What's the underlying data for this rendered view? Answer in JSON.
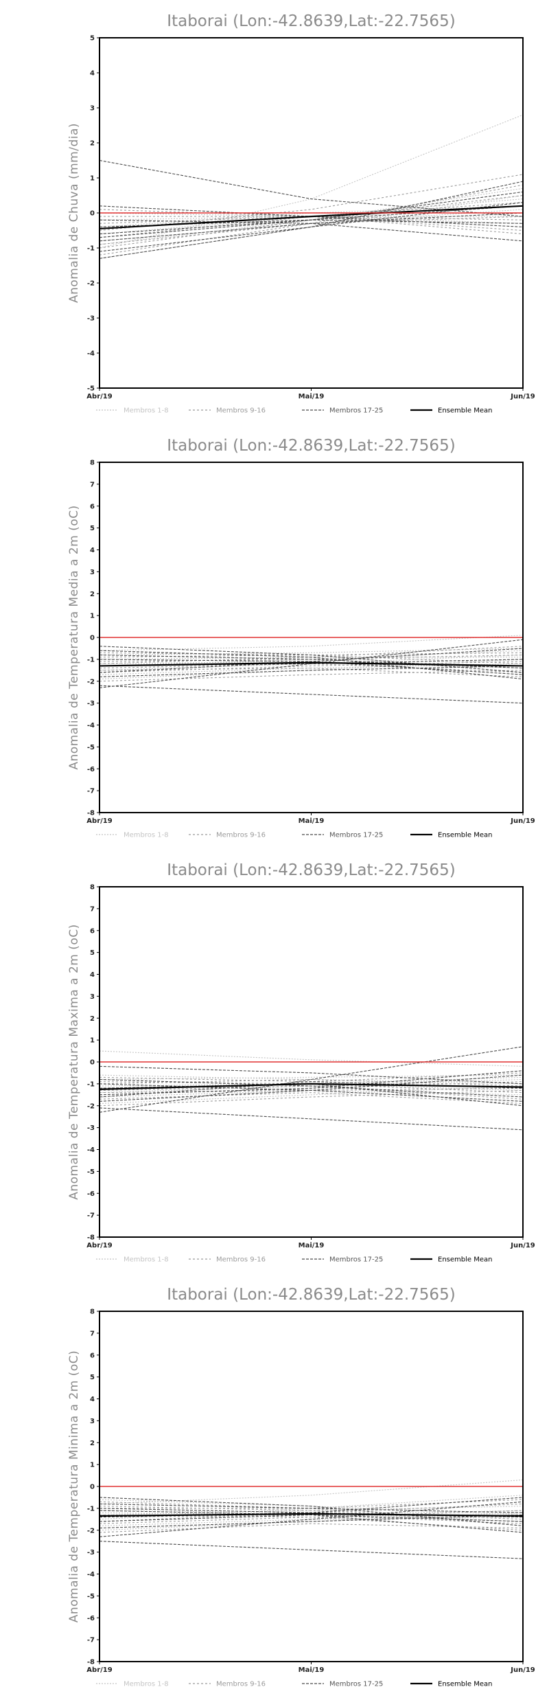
{
  "chart_data": [
    {
      "type": "line",
      "title": "Itaborai (Lon:-42.8639,Lat:-22.7565)",
      "ylabel": "Anomalia de Chuva (mm/dia)",
      "x": [
        "Abr/19",
        "Mai/19",
        "Jun/19"
      ],
      "ylim": [
        -5,
        5
      ],
      "yticks": [
        -5,
        -4,
        -3,
        -2,
        -1,
        0,
        1,
        2,
        3,
        4,
        5
      ],
      "reference_line": {
        "value": 0,
        "color": "#e03030"
      },
      "legend": [
        "Membros 1-8",
        "Membros 9-16",
        "Membros 17-25",
        "Ensemble Mean"
      ],
      "series": [
        {
          "group": 1,
          "values": [
            -1.3,
            -0.4,
            0.5
          ]
        },
        {
          "group": 1,
          "values": [
            -1.0,
            0.4,
            2.8
          ]
        },
        {
          "group": 1,
          "values": [
            -0.9,
            -0.2,
            0.7
          ]
        },
        {
          "group": 1,
          "values": [
            -0.6,
            -0.1,
            0.4
          ]
        },
        {
          "group": 1,
          "values": [
            -0.4,
            0.0,
            0.2
          ]
        },
        {
          "group": 1,
          "values": [
            -0.2,
            -0.1,
            -0.1
          ]
        },
        {
          "group": 1,
          "values": [
            0.0,
            -0.1,
            -0.3
          ]
        },
        {
          "group": 1,
          "values": [
            -0.8,
            -0.3,
            0.1
          ]
        },
        {
          "group": 2,
          "values": [
            -1.2,
            -0.3,
            0.8
          ]
        },
        {
          "group": 2,
          "values": [
            -1.0,
            -0.2,
            0.5
          ]
        },
        {
          "group": 2,
          "values": [
            -0.7,
            -0.1,
            0.3
          ]
        },
        {
          "group": 2,
          "values": [
            -0.5,
            0.1,
            1.1
          ]
        },
        {
          "group": 2,
          "values": [
            -0.3,
            -0.1,
            -0.2
          ]
        },
        {
          "group": 2,
          "values": [
            -0.1,
            -0.1,
            -0.5
          ]
        },
        {
          "group": 2,
          "values": [
            0.1,
            -0.1,
            -0.6
          ]
        },
        {
          "group": 2,
          "values": [
            -0.9,
            -0.3,
            -0.1
          ]
        },
        {
          "group": 3,
          "values": [
            1.5,
            0.4,
            -0.1
          ]
        },
        {
          "group": 3,
          "values": [
            -1.3,
            -0.4,
            0.9
          ]
        },
        {
          "group": 3,
          "values": [
            -1.1,
            -0.4,
            0.3
          ]
        },
        {
          "group": 3,
          "values": [
            -0.8,
            -0.3,
            0.0
          ]
        },
        {
          "group": 3,
          "values": [
            -0.6,
            -0.2,
            0.6
          ]
        },
        {
          "group": 3,
          "values": [
            -0.4,
            -0.2,
            -0.3
          ]
        },
        {
          "group": 3,
          "values": [
            -0.2,
            -0.3,
            -0.8
          ]
        },
        {
          "group": 3,
          "values": [
            0.2,
            -0.1,
            -0.4
          ]
        },
        {
          "group": 3,
          "values": [
            -0.7,
            -0.2,
            0.2
          ]
        },
        {
          "group": 4,
          "values": [
            -0.45,
            -0.1,
            0.2
          ]
        }
      ]
    },
    {
      "type": "line",
      "title": "Itaborai (Lon:-42.8639,Lat:-22.7565)",
      "ylabel": "Anomalia de Temperatura Media a 2m (oC)",
      "x": [
        "Abr/19",
        "Mai/19",
        "Jun/19"
      ],
      "ylim": [
        -8,
        8
      ],
      "yticks": [
        -8,
        -7,
        -6,
        -5,
        -4,
        -3,
        -2,
        -1,
        0,
        1,
        2,
        3,
        4,
        5,
        6,
        7,
        8
      ],
      "reference_line": {
        "value": 0,
        "color": "#e03030"
      },
      "legend": [
        "Membros 1-8",
        "Membros 9-16",
        "Membros 17-25",
        "Ensemble Mean"
      ],
      "series": [
        {
          "group": 1,
          "values": [
            -1.5,
            -1.2,
            -0.8
          ]
        },
        {
          "group": 1,
          "values": [
            -0.6,
            -0.4,
            0.1
          ]
        },
        {
          "group": 1,
          "values": [
            -1.9,
            -1.5,
            -1.0
          ]
        },
        {
          "group": 1,
          "values": [
            -1.0,
            -0.9,
            -0.9
          ]
        },
        {
          "group": 1,
          "values": [
            -1.2,
            -1.1,
            -1.4
          ]
        },
        {
          "group": 1,
          "values": [
            -0.8,
            -0.7,
            -0.5
          ]
        },
        {
          "group": 1,
          "values": [
            -1.7,
            -1.4,
            -1.2
          ]
        },
        {
          "group": 1,
          "values": [
            -1.3,
            -1.0,
            -0.6
          ]
        },
        {
          "group": 2,
          "values": [
            -1.6,
            -1.3,
            -1.1
          ]
        },
        {
          "group": 2,
          "values": [
            -0.9,
            -0.8,
            -0.7
          ]
        },
        {
          "group": 2,
          "values": [
            -1.4,
            -1.2,
            -1.6
          ]
        },
        {
          "group": 2,
          "values": [
            -2.0,
            -1.7,
            -1.5
          ]
        },
        {
          "group": 2,
          "values": [
            -1.1,
            -1.0,
            -0.8
          ]
        },
        {
          "group": 2,
          "values": [
            -0.7,
            -0.8,
            -1.2
          ]
        },
        {
          "group": 2,
          "values": [
            -1.5,
            -1.4,
            -1.8
          ]
        },
        {
          "group": 2,
          "values": [
            -1.2,
            -0.9,
            -0.4
          ]
        },
        {
          "group": 3,
          "values": [
            -2.3,
            -1.2,
            -0.1
          ]
        },
        {
          "group": 3,
          "values": [
            -0.4,
            -0.8,
            -1.6
          ]
        },
        {
          "group": 3,
          "values": [
            -2.2,
            -2.6,
            -3.0
          ]
        },
        {
          "group": 3,
          "values": [
            -1.0,
            -1.1,
            -1.7
          ]
        },
        {
          "group": 3,
          "values": [
            -1.8,
            -1.5,
            -1.3
          ]
        },
        {
          "group": 3,
          "values": [
            -0.6,
            -0.9,
            -1.9
          ]
        },
        {
          "group": 3,
          "values": [
            -1.3,
            -1.2,
            -1.0
          ]
        },
        {
          "group": 3,
          "values": [
            -1.6,
            -1.1,
            -0.5
          ]
        },
        {
          "group": 3,
          "values": [
            -0.8,
            -1.0,
            -1.4
          ]
        },
        {
          "group": 4,
          "values": [
            -1.3,
            -1.15,
            -1.3
          ]
        }
      ]
    },
    {
      "type": "line",
      "title": "Itaborai (Lon:-42.8639,Lat:-22.7565)",
      "ylabel": "Anomalia de Temperatura Maxima a 2m (oC)",
      "x": [
        "Abr/19",
        "Mai/19",
        "Jun/19"
      ],
      "ylim": [
        -8,
        8
      ],
      "yticks": [
        -8,
        -7,
        -6,
        -5,
        -4,
        -3,
        -2,
        -1,
        0,
        1,
        2,
        3,
        4,
        5,
        6,
        7,
        8
      ],
      "reference_line": {
        "value": 0,
        "color": "#e03030"
      },
      "legend": [
        "Membros 1-8",
        "Membros 9-16",
        "Membros 17-25",
        "Ensemble Mean"
      ],
      "series": [
        {
          "group": 1,
          "values": [
            0.5,
            0.1,
            -0.2
          ]
        },
        {
          "group": 1,
          "values": [
            -1.4,
            -1.1,
            -0.8
          ]
        },
        {
          "group": 1,
          "values": [
            -0.8,
            -0.7,
            -0.6
          ]
        },
        {
          "group": 1,
          "values": [
            -1.9,
            -1.5,
            -1.1
          ]
        },
        {
          "group": 1,
          "values": [
            -1.1,
            -1.0,
            -1.3
          ]
        },
        {
          "group": 1,
          "values": [
            -0.6,
            -0.8,
            -1.0
          ]
        },
        {
          "group": 1,
          "values": [
            -1.6,
            -1.3,
            -1.5
          ]
        },
        {
          "group": 1,
          "values": [
            -1.2,
            -1.0,
            -0.7
          ]
        },
        {
          "group": 2,
          "values": [
            -1.5,
            -1.2,
            -0.9
          ]
        },
        {
          "group": 2,
          "values": [
            -0.9,
            -1.0,
            -1.4
          ]
        },
        {
          "group": 2,
          "values": [
            -2.0,
            -1.6,
            -1.3
          ]
        },
        {
          "group": 2,
          "values": [
            -1.3,
            -1.1,
            -1.7
          ]
        },
        {
          "group": 2,
          "values": [
            -0.7,
            -0.9,
            -0.5
          ]
        },
        {
          "group": 2,
          "values": [
            -1.7,
            -1.4,
            -1.9
          ]
        },
        {
          "group": 2,
          "values": [
            -1.0,
            -0.8,
            -1.1
          ]
        },
        {
          "group": 2,
          "values": [
            -1.4,
            -1.3,
            -1.2
          ]
        },
        {
          "group": 3,
          "values": [
            -2.3,
            -0.8,
            0.7
          ]
        },
        {
          "group": 3,
          "values": [
            -0.2,
            -0.5,
            -1.0
          ]
        },
        {
          "group": 3,
          "values": [
            -2.1,
            -2.6,
            -3.1
          ]
        },
        {
          "group": 3,
          "values": [
            -1.2,
            -1.0,
            -2.0
          ]
        },
        {
          "group": 3,
          "values": [
            -1.8,
            -1.3,
            -0.6
          ]
        },
        {
          "group": 3,
          "values": [
            -0.8,
            -1.1,
            -1.6
          ]
        },
        {
          "group": 3,
          "values": [
            -1.5,
            -1.2,
            -0.4
          ]
        },
        {
          "group": 3,
          "values": [
            -1.0,
            -1.3,
            -1.8
          ]
        },
        {
          "group": 3,
          "values": [
            -1.6,
            -0.9,
            -1.2
          ]
        },
        {
          "group": 4,
          "values": [
            -1.25,
            -1.0,
            -1.15
          ]
        }
      ]
    },
    {
      "type": "line",
      "title": "Itaborai (Lon:-42.8639,Lat:-22.7565)",
      "ylabel": "Anomalia de Temperatura Minima a 2m (oC)",
      "x": [
        "Abr/19",
        "Mai/19",
        "Jun/19"
      ],
      "ylim": [
        -8,
        8
      ],
      "yticks": [
        -8,
        -7,
        -6,
        -5,
        -4,
        -3,
        -2,
        -1,
        0,
        1,
        2,
        3,
        4,
        5,
        6,
        7,
        8
      ],
      "reference_line": {
        "value": 0,
        "color": "#e03030"
      },
      "legend": [
        "Membros 1-8",
        "Membros 9-16",
        "Membros 17-25",
        "Ensemble Mean"
      ],
      "series": [
        {
          "group": 1,
          "values": [
            -1.5,
            -1.0,
            -0.4
          ]
        },
        {
          "group": 1,
          "values": [
            -0.8,
            -0.4,
            0.3
          ]
        },
        {
          "group": 1,
          "values": [
            -2.0,
            -1.6,
            -1.2
          ]
        },
        {
          "group": 1,
          "values": [
            -1.1,
            -1.2,
            -1.6
          ]
        },
        {
          "group": 1,
          "values": [
            -1.3,
            -1.1,
            -0.9
          ]
        },
        {
          "group": 1,
          "values": [
            -0.6,
            -0.9,
            -1.3
          ]
        },
        {
          "group": 1,
          "values": [
            -1.8,
            -1.5,
            -1.4
          ]
        },
        {
          "group": 1,
          "values": [
            -1.2,
            -1.3,
            -1.1
          ]
        },
        {
          "group": 2,
          "values": [
            -1.6,
            -1.2,
            -0.8
          ]
        },
        {
          "group": 2,
          "values": [
            -0.9,
            -1.1,
            -1.5
          ]
        },
        {
          "group": 2,
          "values": [
            -1.4,
            -1.3,
            -1.7
          ]
        },
        {
          "group": 2,
          "values": [
            -2.1,
            -1.7,
            -1.9
          ]
        },
        {
          "group": 2,
          "values": [
            -1.0,
            -1.0,
            -0.6
          ]
        },
        {
          "group": 2,
          "values": [
            -0.7,
            -1.0,
            -1.8
          ]
        },
        {
          "group": 2,
          "values": [
            -1.7,
            -1.4,
            -1.1
          ]
        },
        {
          "group": 2,
          "values": [
            -1.3,
            -1.4,
            -2.0
          ]
        },
        {
          "group": 3,
          "values": [
            -2.5,
            -2.9,
            -3.3
          ]
        },
        {
          "group": 3,
          "values": [
            -0.5,
            -0.9,
            -1.8
          ]
        },
        {
          "group": 3,
          "values": [
            -2.3,
            -1.5,
            -0.7
          ]
        },
        {
          "group": 3,
          "values": [
            -1.1,
            -1.3,
            -2.1
          ]
        },
        {
          "group": 3,
          "values": [
            -1.9,
            -1.6,
            -1.3
          ]
        },
        {
          "group": 3,
          "values": [
            -0.8,
            -1.0,
            -1.2
          ]
        },
        {
          "group": 3,
          "values": [
            -1.4,
            -1.2,
            -0.5
          ]
        },
        {
          "group": 3,
          "values": [
            -1.6,
            -1.3,
            -1.6
          ]
        },
        {
          "group": 3,
          "values": [
            -1.0,
            -1.2,
            -1.4
          ]
        },
        {
          "group": 4,
          "values": [
            -1.35,
            -1.25,
            -1.35
          ]
        }
      ]
    }
  ]
}
